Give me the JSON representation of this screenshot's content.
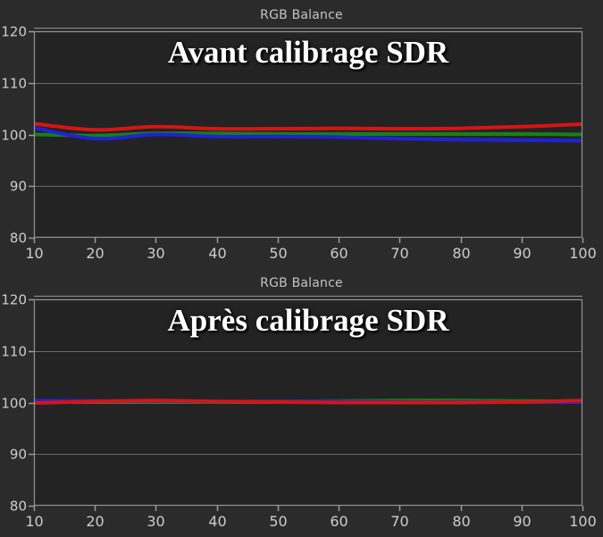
{
  "style": {
    "page_background": "#2b2b2b",
    "plot_background": "#232323",
    "plot_border": "#929292",
    "gridline": "#6a6a6a",
    "tick": "#9a9a9a",
    "tick_label": "#cccccc",
    "title_color": "#c3c3c3",
    "annotation_color": "#ffffff",
    "red": "#d81414",
    "green": "#178017",
    "blue": "#2121d6"
  },
  "chart_data": [
    {
      "type": "line",
      "title": "RGB Balance",
      "annotation": "Avant calibrage SDR",
      "xlabel": "",
      "ylabel": "",
      "x": [
        10,
        20,
        30,
        40,
        50,
        60,
        70,
        80,
        90,
        100
      ],
      "xlim": [
        10,
        100
      ],
      "ylim": [
        80,
        120
      ],
      "xticks": [
        10,
        20,
        30,
        40,
        50,
        60,
        70,
        80,
        90,
        100
      ],
      "yticks": [
        80,
        90,
        100,
        110,
        120
      ],
      "grid": true,
      "legend": "none",
      "series": [
        {
          "name": "Green",
          "color": "#178017",
          "values": [
            100.0,
            99.8,
            100.2,
            100.2,
            100.1,
            100.1,
            100.1,
            100.1,
            100.1,
            100.0
          ]
        },
        {
          "name": "Blue",
          "color": "#2121d6",
          "values": [
            101.3,
            99.2,
            100.0,
            99.6,
            99.6,
            99.5,
            99.2,
            99.0,
            98.9,
            98.8
          ]
        },
        {
          "name": "Red",
          "color": "#d81414",
          "values": [
            102.1,
            100.9,
            101.5,
            101.1,
            101.1,
            101.2,
            101.1,
            101.2,
            101.5,
            102.0
          ]
        }
      ]
    },
    {
      "type": "line",
      "title": "RGB Balance",
      "annotation": "Après calibrage SDR",
      "xlabel": "",
      "ylabel": "",
      "x": [
        10,
        20,
        30,
        40,
        50,
        60,
        70,
        80,
        90,
        100
      ],
      "xlim": [
        10,
        100
      ],
      "ylim": [
        80,
        120
      ],
      "xticks": [
        10,
        20,
        30,
        40,
        50,
        60,
        70,
        80,
        90,
        100
      ],
      "yticks": [
        80,
        90,
        100,
        110,
        120
      ],
      "grid": true,
      "legend": "none",
      "series": [
        {
          "name": "Green",
          "color": "#178017",
          "values": [
            100.1,
            100.2,
            100.2,
            100.1,
            100.2,
            100.3,
            100.4,
            100.4,
            100.3,
            100.3
          ]
        },
        {
          "name": "Blue",
          "color": "#2121d6",
          "values": [
            100.4,
            100.3,
            100.3,
            100.2,
            100.2,
            100.2,
            100.1,
            100.1,
            100.1,
            100.1
          ]
        },
        {
          "name": "Red",
          "color": "#d81414",
          "values": [
            99.9,
            100.2,
            100.4,
            100.2,
            100.1,
            100.0,
            100.0,
            100.0,
            100.1,
            100.4
          ]
        }
      ]
    }
  ]
}
